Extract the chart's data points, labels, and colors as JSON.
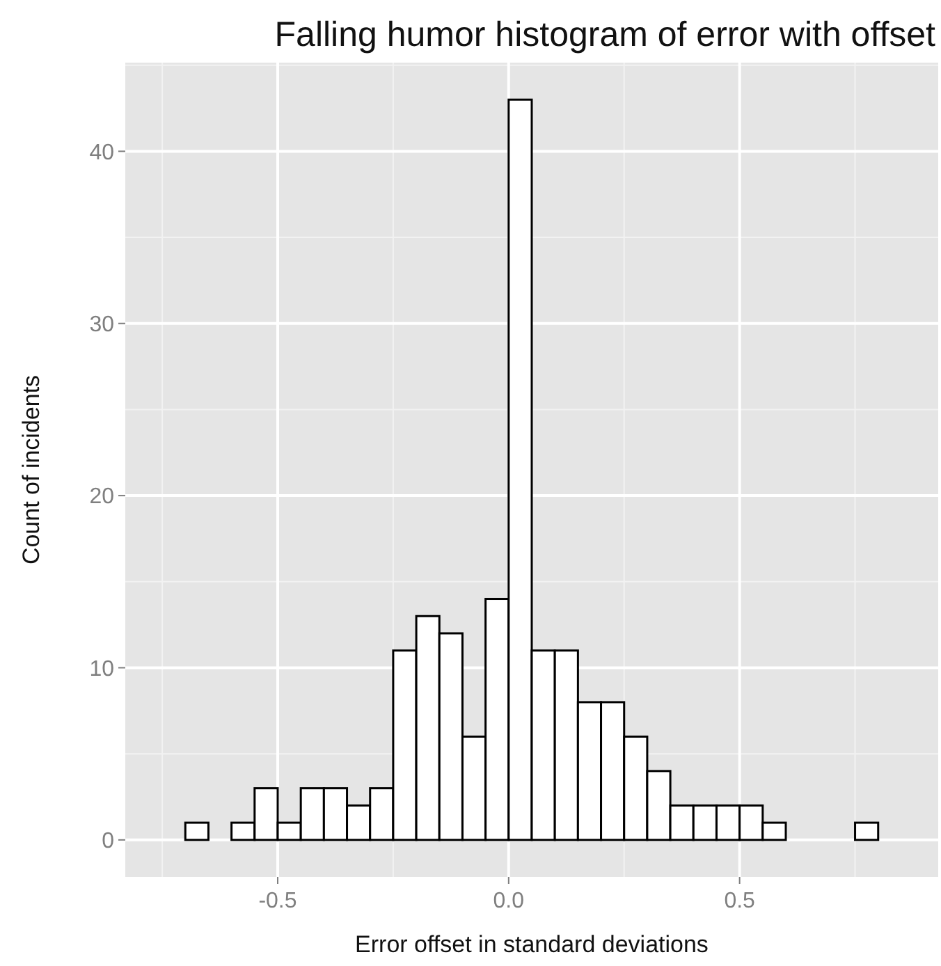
{
  "chart_data": {
    "type": "histogram",
    "title": "Falling humor histogram of error with offset",
    "xlabel": "Error offset in standard deviations",
    "ylabel": "Count of incidents",
    "bins": [
      -0.75,
      -0.7,
      -0.65,
      -0.6,
      -0.55,
      -0.5,
      -0.45,
      -0.4,
      -0.35,
      -0.3,
      -0.25,
      -0.2,
      -0.15,
      -0.1,
      -0.05,
      0,
      0.05,
      0.1,
      0.15,
      0.2,
      0.25,
      0.3,
      0.35,
      0.4,
      0.45,
      0.5,
      0.55,
      0.6,
      0.65,
      0.7,
      0.75,
      0.8,
      0.85
    ],
    "values": [
      0,
      1,
      0,
      1,
      3,
      1,
      3,
      3,
      2,
      3,
      11,
      13,
      12,
      6,
      14,
      43,
      11,
      11,
      8,
      8,
      6,
      4,
      2,
      2,
      2,
      2,
      1,
      0,
      0,
      0,
      1,
      0
    ],
    "color": "#ffffff",
    "xlim": [
      -0.83,
      0.93
    ],
    "xticks": [
      {
        "value": -0.5,
        "label": "-0.5"
      },
      {
        "value": 0,
        "label": "0.0"
      },
      {
        "value": 0.5,
        "label": "0.5"
      }
    ],
    "ylim": [
      -2.15,
      45.15
    ],
    "yticks": [
      0,
      10,
      20,
      30,
      40
    ],
    "grid": true
  }
}
